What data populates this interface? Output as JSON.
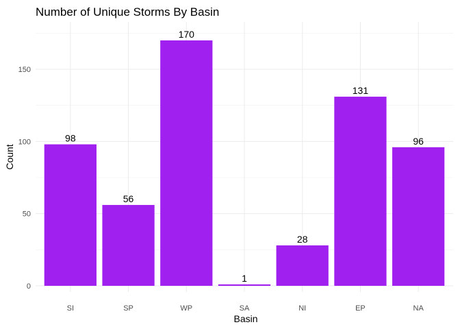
{
  "chart_data": {
    "type": "bar",
    "title": "Number of Unique Storms By Basin",
    "xlabel": "Basin",
    "ylabel": "Count",
    "categories": [
      "SI",
      "SP",
      "WP",
      "SA",
      "NI",
      "EP",
      "NA"
    ],
    "values": [
      98,
      56,
      170,
      1,
      28,
      131,
      96
    ],
    "data_labels": [
      "98",
      "56",
      "170",
      "1",
      "28",
      "131",
      "96"
    ],
    "y_ticks": [
      0,
      50,
      100,
      150
    ],
    "y_tick_labels": [
      "0",
      "50",
      "100",
      "150"
    ],
    "ylim": [
      0,
      178.5
    ],
    "grid": true,
    "legend": "none",
    "bar_color": "#a020f0"
  }
}
